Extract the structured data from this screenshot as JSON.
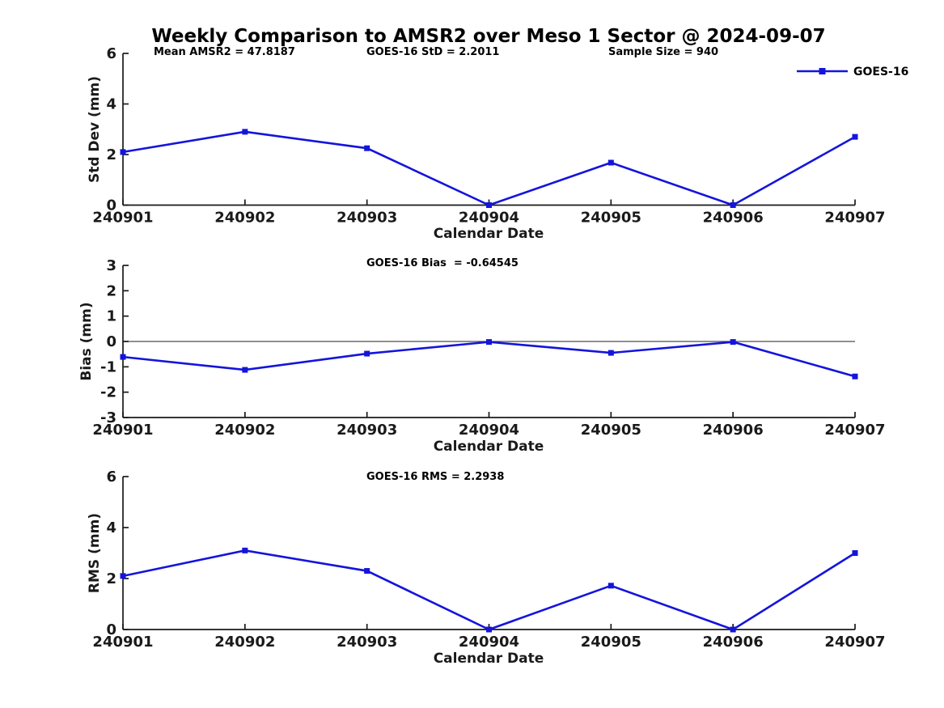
{
  "title": "Weekly Comparison to AMSR2 over Meso 1 Sector @ 2024-09-07",
  "legend": {
    "label": "GOES-16",
    "color": "#1414DC"
  },
  "accent_color": "#1414DC",
  "chart_data": [
    {
      "type": "line",
      "name": "std-dev-panel",
      "ylabel": "Std Dev (mm)",
      "xlabel": "Calendar Date",
      "x_categories": [
        "240901",
        "240902",
        "240903",
        "240904",
        "240905",
        "240906",
        "240907"
      ],
      "ylim": [
        0,
        6
      ],
      "yticks": [
        0,
        2,
        4,
        6
      ],
      "grid": false,
      "zero_line": false,
      "legend_position": "top-right",
      "annotations": [
        "Mean AMSR2 = 47.8187",
        "GOES-16 StD = 2.2011",
        "Sample Size = 940"
      ],
      "series": [
        {
          "name": "GOES-16",
          "color": "#1414DC",
          "marker": "square",
          "values": [
            2.1,
            2.9,
            2.25,
            0.0,
            1.68,
            0.0,
            2.7
          ]
        }
      ]
    },
    {
      "type": "line",
      "name": "bias-panel",
      "ylabel": "Bias (mm)",
      "xlabel": "Calendar Date",
      "x_categories": [
        "240901",
        "240902",
        "240903",
        "240904",
        "240905",
        "240906",
        "240907"
      ],
      "ylim": [
        -3,
        3
      ],
      "yticks": [
        -3,
        -2,
        -1,
        0,
        1,
        2,
        3
      ],
      "grid": false,
      "zero_line": true,
      "annotations": [
        "GOES-16 Bias  = -0.64545"
      ],
      "series": [
        {
          "name": "GOES-16",
          "color": "#1414DC",
          "marker": "square",
          "values": [
            -0.61,
            -1.12,
            -0.48,
            -0.02,
            -0.45,
            -0.02,
            -1.38
          ]
        }
      ]
    },
    {
      "type": "line",
      "name": "rms-panel",
      "ylabel": "RMS (mm)",
      "xlabel": "Calendar Date",
      "x_categories": [
        "240901",
        "240902",
        "240903",
        "240904",
        "240905",
        "240906",
        "240907"
      ],
      "ylim": [
        0,
        6
      ],
      "yticks": [
        0,
        2,
        4,
        6
      ],
      "grid": false,
      "zero_line": false,
      "annotations": [
        "GOES-16 RMS = 2.2938"
      ],
      "series": [
        {
          "name": "GOES-16",
          "color": "#1414DC",
          "marker": "square",
          "values": [
            2.1,
            3.1,
            2.3,
            0.0,
            1.72,
            0.0,
            3.0
          ]
        }
      ]
    }
  ]
}
